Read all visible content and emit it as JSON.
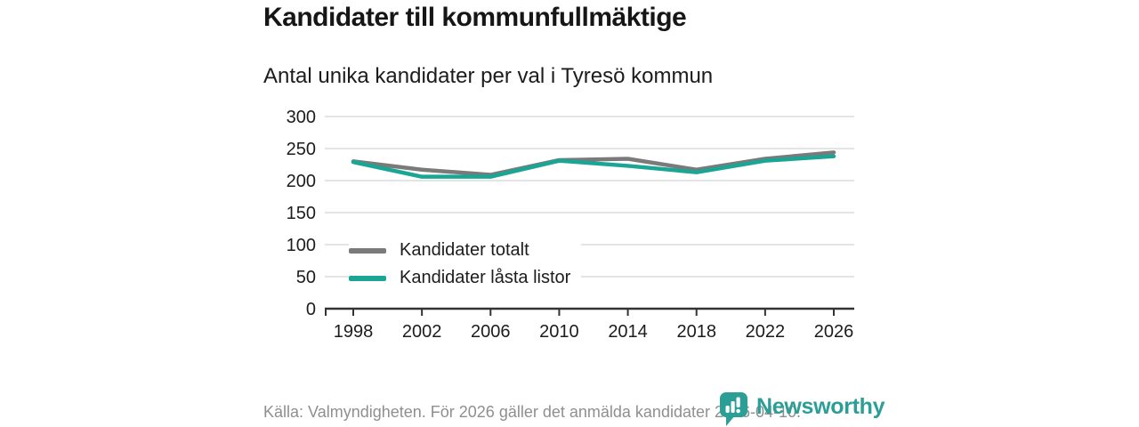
{
  "page": {
    "background": "#ffffff"
  },
  "header": {
    "title": "Kandidater till kommunfullmäktige",
    "subtitle": "Antal unika kandidater per val i Tyresö kommun"
  },
  "chart_data": {
    "type": "line",
    "x": [
      1998,
      2002,
      2006,
      2010,
      2014,
      2018,
      2022,
      2026
    ],
    "series": [
      {
        "name": "Kandidater totalt",
        "color": "#7a7a7a",
        "values": [
          230,
          217,
          209,
          232,
          234,
          217,
          234,
          244
        ]
      },
      {
        "name": "Kandidater låsta listor",
        "color": "#1aa594",
        "values": [
          229,
          206,
          206,
          231,
          223,
          213,
          231,
          238
        ]
      }
    ],
    "title": "Kandidater till kommunfullmäktige",
    "subtitle": "Antal unika kandidater per val i Tyresö kommun",
    "xlabel": "",
    "ylabel": "",
    "ylim": [
      0,
      300
    ],
    "yticks": [
      0,
      50,
      100,
      150,
      200,
      250,
      300
    ],
    "grid": true,
    "legend_position": "inside-bottom-left"
  },
  "footer": {
    "source": "Källa: Valmyndigheten. För 2026 gäller det anmälda kandidater 2026-04-10.",
    "brand": "Newsworthy"
  },
  "colors": {
    "grid": "#dcdcdc",
    "axis": "#333333",
    "title": "#161616",
    "text": "#1c1c1c",
    "muted": "#8f8f8f",
    "brand": "#2b9e96",
    "series_total": "#7a7a7a",
    "series_locked": "#1aa594"
  }
}
